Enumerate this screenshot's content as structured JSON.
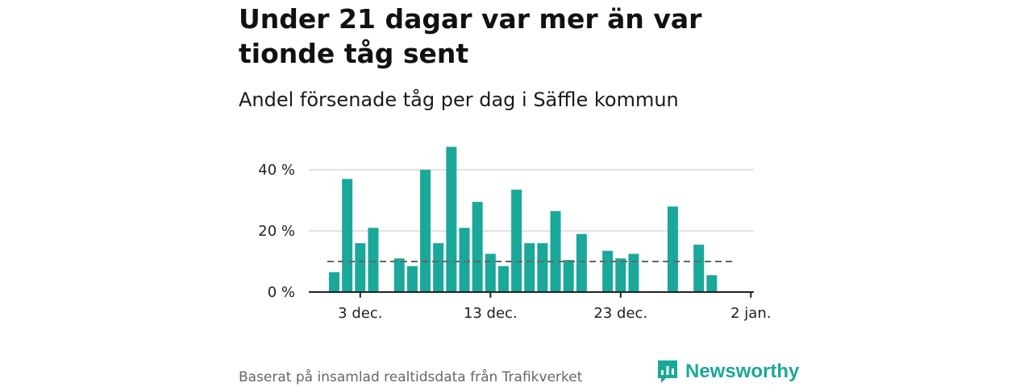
{
  "title": "Under 21 dagar var mer än var tionde tåg sent",
  "subtitle": "Andel försenade tåg per dag i Säffle kommun",
  "footer": "Baserat på insamlad realtidsdata från Trafikverket",
  "brand": "Newsworthy",
  "colors": {
    "bar": "#1aa89a",
    "reference_line": "#666666",
    "grid": "#d9d9d9",
    "axis": "#222222"
  },
  "chart_data": {
    "type": "bar",
    "x": [
      "2023-12-01",
      "2023-12-02",
      "2023-12-03",
      "2023-12-04",
      "2023-12-05",
      "2023-12-06",
      "2023-12-07",
      "2023-12-08",
      "2023-12-09",
      "2023-12-10",
      "2023-12-11",
      "2023-12-12",
      "2023-12-13",
      "2023-12-14",
      "2023-12-15",
      "2023-12-16",
      "2023-12-17",
      "2023-12-18",
      "2023-12-19",
      "2023-12-20",
      "2023-12-21",
      "2023-12-22",
      "2023-12-23",
      "2023-12-24",
      "2023-12-25",
      "2023-12-26",
      "2023-12-27",
      "2023-12-28",
      "2023-12-29",
      "2023-12-30",
      "2023-12-31"
    ],
    "values": [
      6.5,
      37,
      16,
      21,
      0,
      11,
      8.5,
      40,
      16,
      47.5,
      21,
      29.5,
      12.5,
      8.5,
      33.5,
      16,
      16,
      26.5,
      10.5,
      19,
      0,
      13.5,
      11,
      12.5,
      0,
      0,
      28,
      0,
      15.5,
      5.5,
      0
    ],
    "reference_line": 10,
    "y_ticks": [
      "0 %",
      "20 %",
      "40 %"
    ],
    "y_tick_values": [
      0,
      20,
      40
    ],
    "x_ticks": [
      "3 dec.",
      "13 dec.",
      "23 dec.",
      "2 jan."
    ],
    "x_tick_dates": [
      "2023-12-03",
      "2023-12-13",
      "2023-12-23",
      "2024-01-02"
    ],
    "ylim": [
      0,
      50
    ],
    "grid": true
  }
}
